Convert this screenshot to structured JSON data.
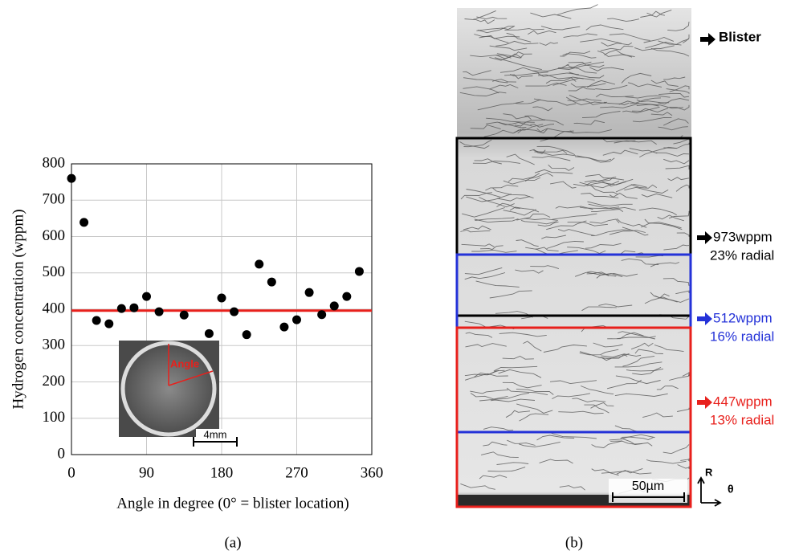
{
  "chart_data": {
    "type": "scatter",
    "ylabel": "Hydrogen concentration (wppm)",
    "xlabel": "Angle in degree (0° = blister location)",
    "x": [
      0,
      15,
      30,
      45,
      60,
      75,
      90,
      105,
      135,
      165,
      180,
      195,
      210,
      225,
      240,
      255,
      270,
      285,
      300,
      315,
      330,
      345
    ],
    "values": [
      760,
      639,
      369,
      360,
      402,
      404,
      435,
      393,
      384,
      333,
      431,
      393,
      330,
      524,
      475,
      351,
      371,
      446,
      385,
      409,
      435,
      504
    ],
    "color": "#000000",
    "xlim": [
      0,
      360
    ],
    "ylim": [
      0,
      800
    ],
    "xticks": [
      0,
      90,
      180,
      270,
      360
    ],
    "yticks": [
      0,
      100,
      200,
      300,
      400,
      500,
      600,
      700,
      800
    ],
    "grid": true,
    "reference_line": {
      "value": 396,
      "color": "#e8201c"
    },
    "inset": {
      "label": "Angle",
      "scale_bar": "4mm"
    },
    "caption": "(a)"
  },
  "micrograph": {
    "blister": "Blister",
    "regions": [
      {
        "concentration": "973wppm",
        "radial": "23% radial",
        "color": "#000000"
      },
      {
        "concentration": "512wppm",
        "radial": "16% radial",
        "color": "#2432d8"
      },
      {
        "concentration": "447wppm",
        "radial": "13% radial",
        "color": "#e8201c"
      }
    ],
    "scale_bar": "50µm",
    "axis_r": "R",
    "axis_theta": "θ",
    "caption": "(b)"
  }
}
